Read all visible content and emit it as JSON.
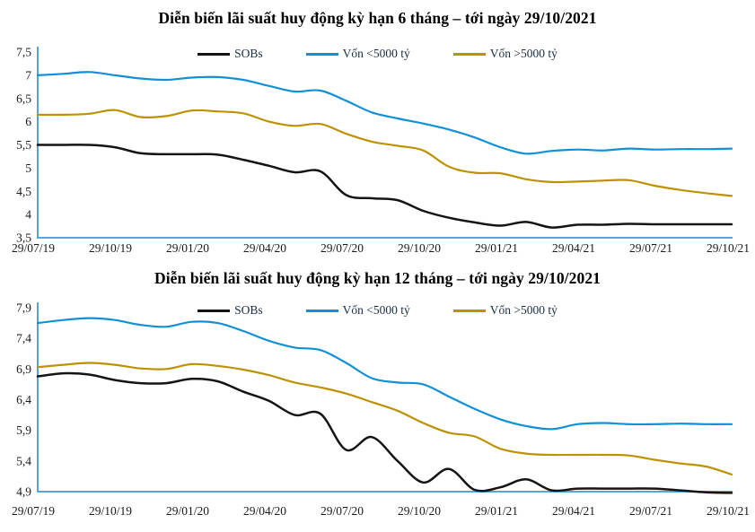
{
  "colors": {
    "background": "#ffffff",
    "title": "#000000",
    "axis_blue": "#3E9BD3",
    "tick_label": "#1a1a1a",
    "legend_label": "#1b2d42",
    "series_black": "#141414",
    "series_blue": "#1190D5",
    "series_gold": "#BD9200"
  },
  "chart_data": [
    {
      "type": "line",
      "title": "Diễn biến lãi suất huy động kỳ hạn 6 tháng – tới ngày 29/10/2021",
      "x_tick_labels": [
        "29/07/19",
        "29/10/19",
        "29/01/20",
        "29/04/20",
        "29/07/20",
        "29/10/20",
        "29/01/21",
        "29/04/21",
        "29/07/21",
        "29/10/21"
      ],
      "x_start": "29/07/19",
      "x_end": "29/10/21",
      "sample_interval": "monthly",
      "ylim": [
        3.5,
        7.5
      ],
      "y_tick_labels": [
        "7,5",
        "7",
        "6,5",
        "6",
        "5,5",
        "5",
        "4,5",
        "4",
        "3,5"
      ],
      "y_tick_values": [
        7.5,
        7.0,
        6.5,
        6.0,
        5.5,
        5.0,
        4.5,
        4.0,
        3.5
      ],
      "legend_position": "top",
      "grid": false,
      "series": [
        {
          "name": "SOBs",
          "color": "#141414",
          "values": [
            5.5,
            5.5,
            5.5,
            5.45,
            5.32,
            5.3,
            5.3,
            5.29,
            5.18,
            5.05,
            4.91,
            4.93,
            4.42,
            4.35,
            4.31,
            4.08,
            3.93,
            3.83,
            3.76,
            3.84,
            3.72,
            3.78,
            3.78,
            3.8,
            3.79,
            3.79,
            3.79,
            3.79
          ]
        },
        {
          "name": "Vốn <5000 tỷ",
          "color": "#1190D5",
          "values": [
            7.0,
            7.03,
            7.07,
            7.0,
            6.93,
            6.9,
            6.95,
            6.96,
            6.9,
            6.77,
            6.65,
            6.67,
            6.45,
            6.2,
            6.07,
            5.96,
            5.83,
            5.66,
            5.45,
            5.31,
            5.37,
            5.4,
            5.38,
            5.42,
            5.4,
            5.41,
            5.41,
            5.42
          ]
        },
        {
          "name": "Vốn >5000 tỷ",
          "color": "#BD9200",
          "values": [
            6.15,
            6.15,
            6.17,
            6.25,
            6.1,
            6.12,
            6.24,
            6.22,
            6.18,
            6.0,
            5.91,
            5.95,
            5.74,
            5.57,
            5.48,
            5.38,
            5.03,
            4.9,
            4.89,
            4.76,
            4.7,
            4.71,
            4.73,
            4.74,
            4.62,
            4.53,
            4.46,
            4.4
          ]
        }
      ]
    },
    {
      "type": "line",
      "title": "Diễn biến lãi suất huy động kỳ hạn 12 tháng – tới ngày 29/10/2021",
      "x_tick_labels": [
        "29/07/19",
        "29/10/19",
        "29/01/20",
        "29/04/20",
        "29/07/20",
        "29/10/20",
        "29/01/21",
        "29/04/21",
        "29/07/21",
        "29/10/21"
      ],
      "x_start": "29/07/19",
      "x_end": "29/10/21",
      "sample_interval": "monthly",
      "ylim": [
        4.9,
        7.9
      ],
      "y_tick_labels": [
        "7,9",
        "7,4",
        "6,9",
        "6,4",
        "5,9",
        "5,4",
        "4,9"
      ],
      "y_tick_values": [
        7.9,
        7.4,
        6.9,
        6.4,
        5.9,
        5.4,
        4.9
      ],
      "legend_position": "top",
      "grid": false,
      "series": [
        {
          "name": "SOBs",
          "color": "#141414",
          "values": [
            6.78,
            6.83,
            6.81,
            6.72,
            6.67,
            6.67,
            6.74,
            6.7,
            6.53,
            6.38,
            6.15,
            6.17,
            5.58,
            5.79,
            5.4,
            5.05,
            5.27,
            4.93,
            4.97,
            5.1,
            4.92,
            4.95,
            4.95,
            4.95,
            4.95,
            4.92,
            4.89,
            4.88
          ]
        },
        {
          "name": "Vốn <5000 tỷ",
          "color": "#1190D5",
          "values": [
            7.65,
            7.7,
            7.73,
            7.7,
            7.62,
            7.59,
            7.67,
            7.65,
            7.52,
            7.36,
            7.25,
            7.21,
            7.0,
            6.75,
            6.68,
            6.65,
            6.45,
            6.25,
            6.08,
            5.97,
            5.92,
            6.0,
            6.02,
            6.0,
            6.0,
            6.01,
            6.0,
            6.0
          ]
        },
        {
          "name": "Vốn >5000 tỷ",
          "color": "#BD9200",
          "values": [
            6.93,
            6.97,
            7.0,
            6.97,
            6.91,
            6.9,
            6.98,
            6.95,
            6.89,
            6.8,
            6.68,
            6.6,
            6.5,
            6.36,
            6.22,
            6.02,
            5.86,
            5.8,
            5.6,
            5.52,
            5.5,
            5.5,
            5.5,
            5.49,
            5.42,
            5.36,
            5.31,
            5.18
          ]
        }
      ]
    }
  ]
}
